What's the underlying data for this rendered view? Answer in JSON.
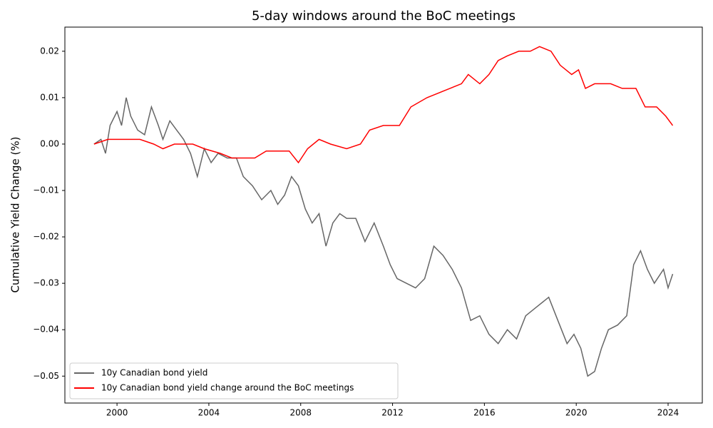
{
  "chart_data": {
    "type": "line",
    "title": "5-day windows around the BoC meetings",
    "y_label": "Cumulative Yield Change (%)",
    "legend": "lower left",
    "xlim": [
      1997.73,
      2025.49
    ],
    "xticks": [
      2000,
      2004,
      2008,
      2012,
      2016,
      2020,
      2024
    ],
    "ylim": [
      -0.0558,
      0.0252
    ],
    "yticks": [
      {
        "value": -0.05,
        "label": "−0.05"
      },
      {
        "value": -0.04,
        "label": "−0.04"
      },
      {
        "value": -0.03,
        "label": "−0.03"
      },
      {
        "value": -0.02,
        "label": "−0.02"
      },
      {
        "value": -0.01,
        "label": "−0.01"
      },
      {
        "value": 0,
        "label": "0.00"
      },
      0.01,
      0.02
    ],
    "series": [
      {
        "name": "10y Canadian bond yield",
        "color": "#666666",
        "x": [
          1999.0,
          1999.3,
          1999.5,
          1999.7,
          2000.0,
          2000.2,
          2000.4,
          2000.6,
          2000.9,
          2001.2,
          2001.5,
          2001.8,
          2002.0,
          2002.3,
          2002.6,
          2002.9,
          2003.2,
          2003.5,
          2003.8,
          2004.1,
          2004.4,
          2004.8,
          2005.2,
          2005.5,
          2005.9,
          2006.3,
          2006.7,
          2007.0,
          2007.3,
          2007.6,
          2007.9,
          2008.2,
          2008.5,
          2008.8,
          2009.1,
          2009.4,
          2009.7,
          2010.0,
          2010.4,
          2010.8,
          2011.2,
          2011.6,
          2011.9,
          2012.2,
          2012.6,
          2013.0,
          2013.4,
          2013.8,
          2014.2,
          2014.6,
          2015.0,
          2015.4,
          2015.8,
          2016.2,
          2016.6,
          2017.0,
          2017.4,
          2017.8,
          2018.3,
          2018.8,
          2019.2,
          2019.6,
          2019.9,
          2020.2,
          2020.5,
          2020.8,
          2021.1,
          2021.4,
          2021.8,
          2022.2,
          2022.5,
          2022.8,
          2023.1,
          2023.4,
          2023.8,
          2024.0,
          2024.2
        ],
        "values": [
          0.0,
          0.001,
          -0.002,
          0.004,
          0.007,
          0.004,
          0.01,
          0.006,
          0.003,
          0.002,
          0.008,
          0.004,
          0.001,
          0.005,
          0.003,
          0.001,
          -0.002,
          -0.007,
          -0.001,
          -0.004,
          -0.002,
          -0.003,
          -0.003,
          -0.007,
          -0.009,
          -0.012,
          -0.01,
          -0.013,
          -0.011,
          -0.007,
          -0.009,
          -0.014,
          -0.017,
          -0.015,
          -0.022,
          -0.017,
          -0.015,
          -0.016,
          -0.016,
          -0.021,
          -0.017,
          -0.022,
          -0.026,
          -0.029,
          -0.03,
          -0.031,
          -0.029,
          -0.022,
          -0.024,
          -0.027,
          -0.031,
          -0.038,
          -0.037,
          -0.041,
          -0.043,
          -0.04,
          -0.042,
          -0.037,
          -0.035,
          -0.033,
          -0.038,
          -0.043,
          -0.041,
          -0.044,
          -0.05,
          -0.049,
          -0.044,
          -0.04,
          -0.039,
          -0.037,
          -0.026,
          -0.023,
          -0.027,
          -0.03,
          -0.027,
          -0.031,
          -0.028
        ]
      },
      {
        "name": "10y Canadian bond yield change around the BoC meetings",
        "color": "#ff0000",
        "x": [
          1999.0,
          1999.6,
          2000.3,
          2001.0,
          2001.6,
          2002.0,
          2002.5,
          2003.3,
          2003.8,
          2004.5,
          2005.0,
          2006.0,
          2006.5,
          2007.5,
          2007.9,
          2008.3,
          2008.8,
          2009.3,
          2010.0,
          2010.6,
          2011.0,
          2011.6,
          2012.3,
          2012.8,
          2013.5,
          2014.0,
          2014.5,
          2015.0,
          2015.3,
          2015.8,
          2016.2,
          2016.6,
          2017.0,
          2017.5,
          2018.0,
          2018.4,
          2018.9,
          2019.3,
          2019.8,
          2020.1,
          2020.4,
          2020.8,
          2021.5,
          2022.0,
          2022.6,
          2023.0,
          2023.5,
          2023.9,
          2024.2
        ],
        "values": [
          0.0,
          0.001,
          0.001,
          0.001,
          0.0,
          -0.001,
          0.0,
          0.0,
          -0.001,
          -0.002,
          -0.003,
          -0.003,
          -0.0015,
          -0.0015,
          -0.004,
          -0.001,
          0.001,
          0.0,
          -0.001,
          0.0,
          0.003,
          0.004,
          0.004,
          0.008,
          0.01,
          0.011,
          0.012,
          0.013,
          0.015,
          0.013,
          0.015,
          0.018,
          0.019,
          0.02,
          0.02,
          0.021,
          0.02,
          0.017,
          0.015,
          0.016,
          0.012,
          0.013,
          0.013,
          0.012,
          0.012,
          0.008,
          0.008,
          0.006,
          0.004
        ]
      }
    ]
  }
}
